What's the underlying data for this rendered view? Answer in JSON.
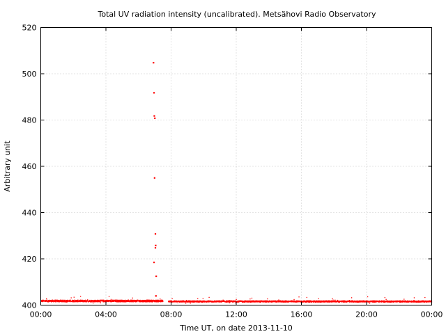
{
  "chart_data": {
    "type": "scatter",
    "title": "Total UV radiation intensity (uncalibrated). Metsähovi Radio Observatory",
    "xlabel": "Time UT, on date 2013-11-10",
    "ylabel": "Arbitrary unit",
    "xlim": [
      "00:00",
      "24:00"
    ],
    "ylim": [
      400,
      520
    ],
    "x_ticks": [
      "00:00",
      "04:00",
      "08:00",
      "12:00",
      "16:00",
      "20:00",
      "00:00"
    ],
    "y_ticks": [
      400,
      420,
      440,
      460,
      480,
      500,
      520
    ],
    "grid": true,
    "marker_color": "#ff0000",
    "baseline": {
      "description_points": "dense sampled baseline near 401-402",
      "segments": [
        {
          "from": "00:00",
          "to": "07:30",
          "level": 401.8,
          "noise": 0.8
        },
        {
          "from": "07:50",
          "to": "24:00",
          "level": 401.6,
          "noise": 0.6
        }
      ]
    },
    "spike_points": [
      {
        "x": "06:55",
        "y": 504.8
      },
      {
        "x": "06:57",
        "y": 491.8
      },
      {
        "x": "06:58",
        "y": 481.8
      },
      {
        "x": "07:00",
        "y": 480.8
      },
      {
        "x": "06:59",
        "y": 455.0
      },
      {
        "x": "07:02",
        "y": 430.8
      },
      {
        "x": "07:03",
        "y": 425.8
      },
      {
        "x": "07:02",
        "y": 424.8
      },
      {
        "x": "06:57",
        "y": 418.5
      },
      {
        "x": "07:05",
        "y": 412.5
      },
      {
        "x": "07:04",
        "y": 404.0
      }
    ]
  }
}
